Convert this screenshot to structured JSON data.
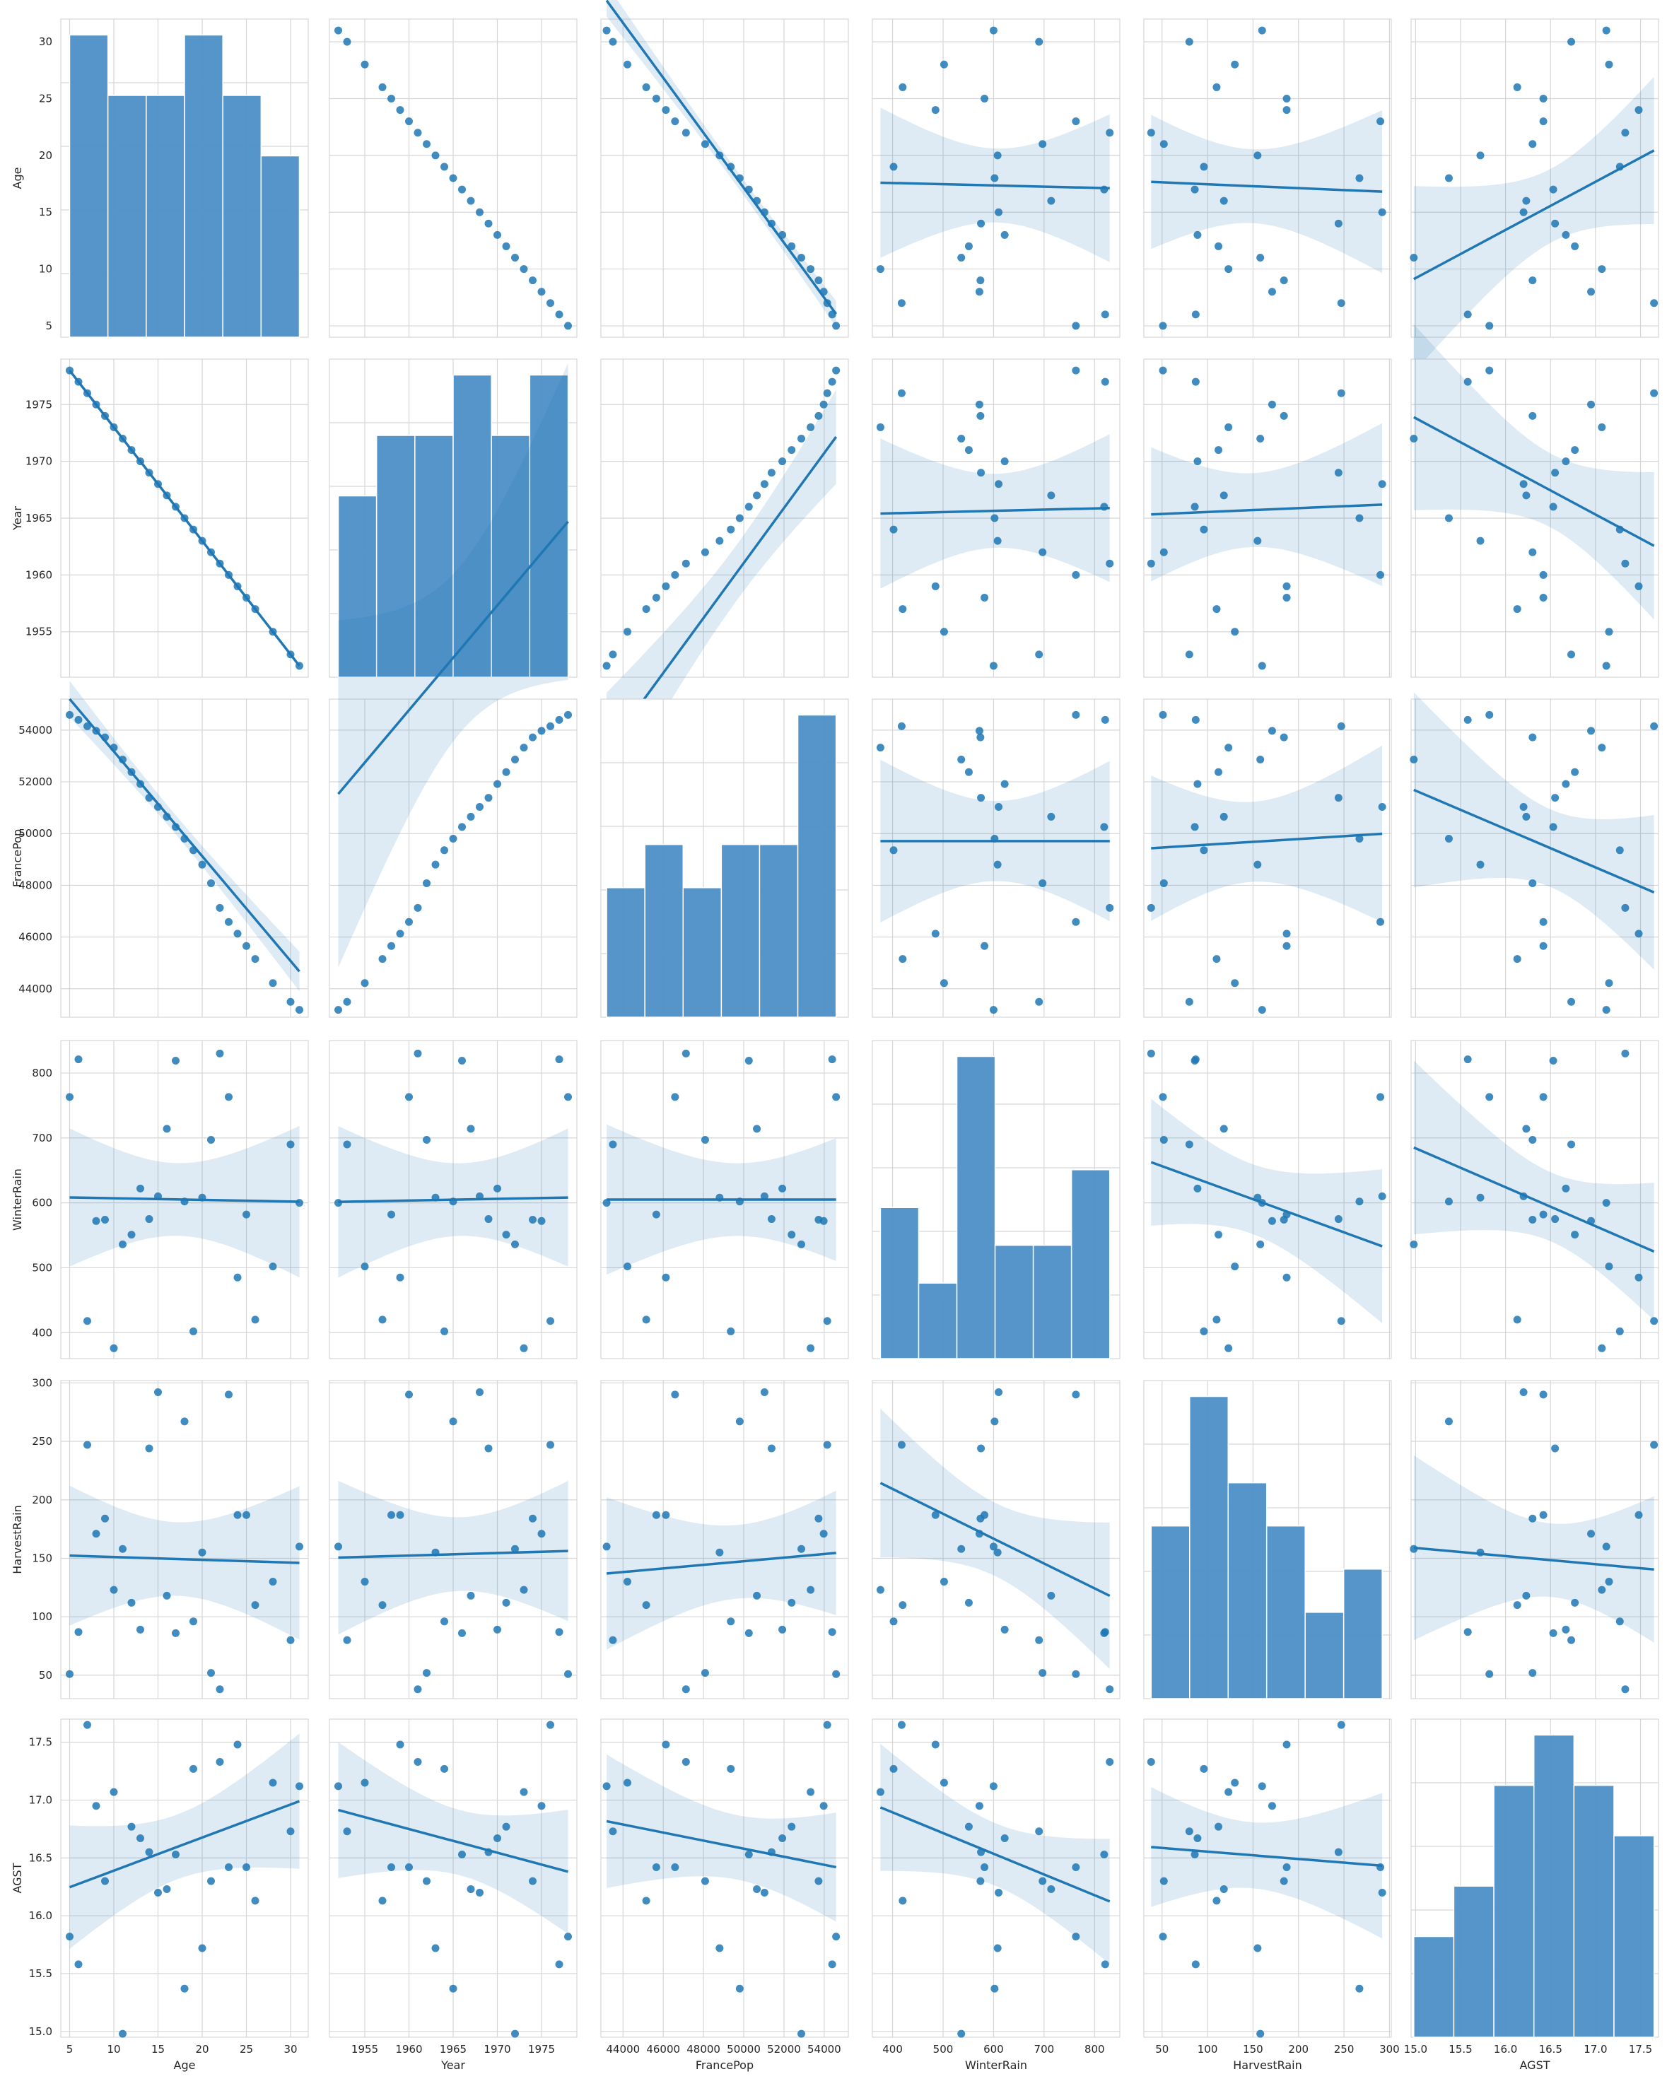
{
  "chart_data": {
    "type": "scatter",
    "kind": "pairplot",
    "variables": [
      "Age",
      "Year",
      "FrancePop",
      "WinterRain",
      "HarvestRain",
      "AGST"
    ],
    "diagonal": "histogram",
    "off_diagonal": "scatter with linear regression line and 95% confidence band",
    "grid": true,
    "style": "whitegrid",
    "colors": {
      "point": "#1f77b4",
      "line": "#1f77b4",
      "band": "#1f77b4",
      "hist": "#4c8fc6",
      "grid": "#d6d6d6",
      "frame": "#cfcfcf"
    },
    "variable_ranges": {
      "Age": {
        "lim": [
          4,
          32
        ],
        "ticks": [
          5,
          10,
          15,
          20,
          25,
          30
        ]
      },
      "Year": {
        "lim": [
          1951,
          1979
        ],
        "ticks": [
          1955,
          1960,
          1965,
          1970,
          1975
        ]
      },
      "FrancePop": {
        "lim": [
          42900,
          55200
        ],
        "ticks": [
          44000,
          46000,
          48000,
          50000,
          52000,
          54000
        ]
      },
      "WinterRain": {
        "lim": [
          360,
          850
        ],
        "ticks": [
          400,
          500,
          600,
          700,
          800
        ]
      },
      "HarvestRain": {
        "lim": [
          30,
          302
        ],
        "ticks": [
          50,
          100,
          150,
          200,
          250,
          300
        ]
      },
      "AGST": {
        "lim": [
          14.95,
          17.7
        ],
        "ticks": [
          15.0,
          15.5,
          16.0,
          16.5,
          17.0,
          17.5
        ]
      }
    },
    "data": {
      "Age": [
        31,
        30,
        28,
        26,
        25,
        24,
        23,
        22,
        21,
        20,
        19,
        18,
        17,
        16,
        15,
        14,
        13,
        12,
        11,
        10,
        9,
        8,
        7,
        6,
        5
      ],
      "Year": [
        1952,
        1953,
        1955,
        1957,
        1958,
        1959,
        1960,
        1961,
        1962,
        1963,
        1964,
        1965,
        1966,
        1967,
        1968,
        1969,
        1970,
        1971,
        1972,
        1973,
        1974,
        1975,
        1976,
        1977,
        1978
      ],
      "FrancePop": [
        43184,
        43495,
        44218,
        45152,
        45654,
        46129,
        46584,
        47128,
        48081,
        48799,
        49356,
        49801,
        50255,
        50651,
        51031,
        51384,
        51917,
        52379,
        52863,
        53323,
        53720,
        53974,
        54151,
        54396,
        54590
      ],
      "WinterRain": [
        600,
        690,
        502,
        420,
        582,
        485,
        763,
        830,
        697,
        608,
        402,
        602,
        819,
        714,
        610,
        575,
        622,
        551,
        536,
        376,
        574,
        572,
        418,
        821,
        763
      ],
      "HarvestRain": [
        160,
        80,
        130,
        110,
        187,
        187,
        290,
        38,
        52,
        155,
        96,
        267,
        86,
        118,
        292,
        244,
        89,
        112,
        158,
        123,
        184,
        171,
        247,
        87,
        51
      ],
      "AGST": [
        17.12,
        16.73,
        17.15,
        16.13,
        16.42,
        17.48,
        16.42,
        17.33,
        16.3,
        15.72,
        17.27,
        15.37,
        16.53,
        16.23,
        16.2,
        16.55,
        16.67,
        16.77,
        14.98,
        17.07,
        16.3,
        16.95,
        17.65,
        15.58,
        15.82
      ]
    },
    "regressions": [
      {
        "x": "Year",
        "y": "Age",
        "intercept": 3943.0,
        "slope": -1.0
      },
      {
        "x": "FrancePop",
        "y": "Age",
        "intercept": 138.1,
        "slope": -0.002419
      },
      {
        "x": "WinterRain",
        "y": "Age",
        "intercept": 18.0,
        "slope": -0.00107
      },
      {
        "x": "HarvestRain",
        "y": "Age",
        "intercept": 17.8,
        "slope": -0.0034
      },
      {
        "x": "AGST",
        "y": "Age",
        "intercept": -54.4,
        "slope": 4.24
      },
      {
        "x": "Age",
        "y": "Year",
        "intercept": 1983.0,
        "slope": -1.0
      },
      {
        "x": "FrancePop",
        "y": "Year",
        "intercept": 1840.1,
        "slope": 0.002419
      },
      {
        "x": "WinterRain",
        "y": "Year",
        "intercept": 1965.0,
        "slope": 0.00107
      },
      {
        "x": "HarvestRain",
        "y": "Year",
        "intercept": 1965.2,
        "slope": 0.0034
      },
      {
        "x": "AGST",
        "y": "Year",
        "intercept": 2037.4,
        "slope": -4.24
      },
      {
        "x": "Age",
        "y": "FrancePop",
        "intercept": 57230,
        "slope": -405.2
      },
      {
        "x": "Year",
        "y": "FrancePop",
        "intercept": -739420,
        "slope": 405.2
      },
      {
        "x": "WinterRain",
        "y": "FrancePop",
        "intercept": 49710,
        "slope": 0.0
      },
      {
        "x": "HarvestRain",
        "y": "FrancePop",
        "intercept": 49350,
        "slope": 2.2
      },
      {
        "x": "AGST",
        "y": "FrancePop",
        "intercept": 73920,
        "slope": -1484
      },
      {
        "x": "Age",
        "y": "WinterRain",
        "intercept": 609.5,
        "slope": -0.25
      },
      {
        "x": "Year",
        "y": "WinterRain",
        "intercept": 99.8,
        "slope": 0.257
      },
      {
        "x": "FrancePop",
        "y": "WinterRain",
        "intercept": 605.0,
        "slope": 0.0
      },
      {
        "x": "HarvestRain",
        "y": "WinterRain",
        "intercept": 682.0,
        "slope": -0.51
      },
      {
        "x": "AGST",
        "y": "WinterRain",
        "intercept": 1584,
        "slope": -60.0
      },
      {
        "x": "Age",
        "y": "HarvestRain",
        "intercept": 153.5,
        "slope": -0.24
      },
      {
        "x": "Year",
        "y": "HarvestRain",
        "intercept": -272,
        "slope": 0.2165
      },
      {
        "x": "FrancePop",
        "y": "HarvestRain",
        "intercept": 70.5,
        "slope": 0.00154
      },
      {
        "x": "WinterRain",
        "y": "HarvestRain",
        "intercept": 294.3,
        "slope": -0.2125
      },
      {
        "x": "AGST",
        "y": "HarvestRain",
        "intercept": 263.1,
        "slope": -6.95
      },
      {
        "x": "Age",
        "y": "AGST",
        "intercept": 16.104,
        "slope": 0.0286
      },
      {
        "x": "Year",
        "y": "AGST",
        "intercept": 56.93,
        "slope": -0.0205
      },
      {
        "x": "FrancePop",
        "y": "AGST",
        "intercept": 18.32,
        "slope": -3.48e-05
      },
      {
        "x": "WinterRain",
        "y": "AGST",
        "intercept": 17.61,
        "slope": -0.00179
      },
      {
        "x": "HarvestRain",
        "y": "AGST",
        "intercept": 16.618,
        "slope": -0.000635
      }
    ]
  }
}
